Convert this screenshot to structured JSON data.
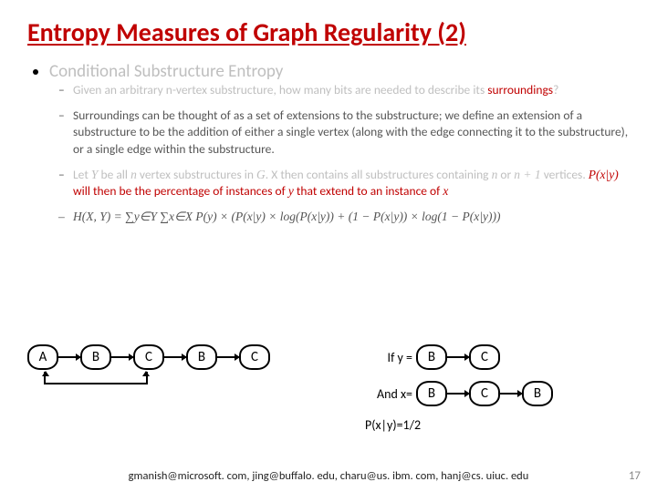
{
  "title": "Entropy Measures of Graph Regularity (2)",
  "bullet_main": "Conditional Substructure Entropy",
  "sub1_a": "Given an arbitrary n-vertex substructure, how many bits are needed to describe its ",
  "sub1_b": "surroundings",
  "sub1_c": "?",
  "sub2": "Surroundings can be thought of as a set of extensions to the substructure; we define an extension of a substructure to be the addition of either a single vertex (along with the edge connecting it to the substructure), or a single edge within the substructure.",
  "sub3_a": "Let ",
  "sub3_b": "Y",
  "sub3_c": " be all ",
  "sub3_d": "n",
  "sub3_e": " vertex substructures in ",
  "sub3_f": "G",
  "sub3_g": ". X then contains all substructures containing ",
  "sub3_h": "n",
  "sub3_i": " or ",
  "sub3_j": "n + 1",
  "sub3_k": " vertices. ",
  "sub3_l": "P(x|y)",
  "sub3_m": " will then be the percentage of instances of ",
  "sub3_n": "y",
  "sub3_o": " that extend to an instance of ",
  "sub3_p": "x",
  "sub4": "H(X, Y) = ∑y∈Y ∑x∈X P(y) × (P(x|y) × log(P(x|y)) + (1 − P(x|y)) × log(1 − P(x|y)))",
  "nodes": {
    "A": "A",
    "B": "B",
    "C": "C"
  },
  "ify": "If y =",
  "andx": "And x=",
  "prob": "P(x|y)=1/2",
  "footer": "gmanish@microsoft. com, jing@buffalo. edu, charu@us. ibm. com, hanj@cs. uiuc. edu",
  "pagenum": "17",
  "colors": {
    "title": "#c00000",
    "gray": "#bfbfbf",
    "body": "#555555"
  }
}
